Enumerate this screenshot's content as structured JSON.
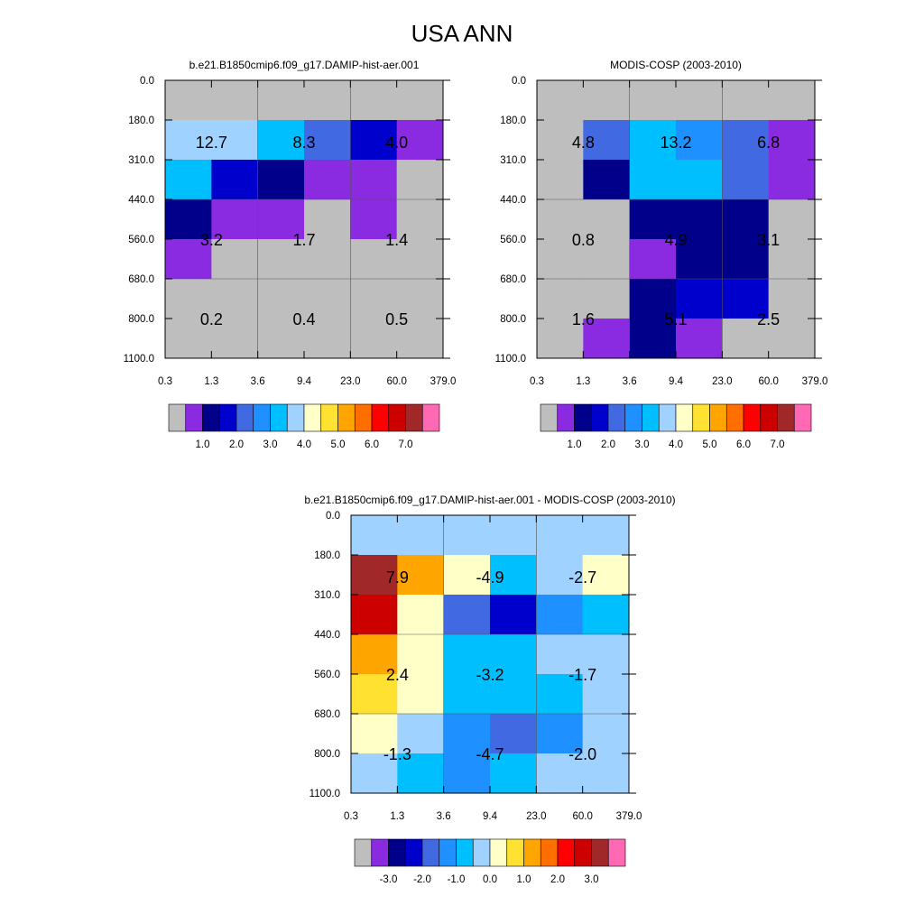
{
  "title": "USA ANN",
  "chart_data": [
    {
      "type": "heatmap",
      "title": "b.e21.B1850cmip6.f09_g17.DAMIP-hist-aer.001",
      "x_ticks": [
        "0.3",
        "1.3",
        "3.6",
        "9.4",
        "23.0",
        "60.0",
        "379.0"
      ],
      "y_ticks": [
        "0.0",
        "180.0",
        "310.0",
        "440.0",
        "560.0",
        "680.0",
        "800.0",
        "1100.0"
      ],
      "cell_colors": [
        [
          "#bebebe",
          "#bebebe",
          "#bebebe",
          "#bebebe",
          "#bebebe",
          "#bebebe"
        ],
        [
          "#a0d2ff",
          "#a0d2ff",
          "#00bfff",
          "#4169e1",
          "#0000cd",
          "#8a2be2"
        ],
        [
          "#00bfff",
          "#0000cd",
          "#00008b",
          "#8a2be2",
          "#8a2be2",
          "#bebebe"
        ],
        [
          "#00008b",
          "#8a2be2",
          "#8a2be2",
          "#bebebe",
          "#8a2be2",
          "#bebebe"
        ],
        [
          "#8a2be2",
          "#bebebe",
          "#bebebe",
          "#bebebe",
          "#bebebe",
          "#bebebe"
        ],
        [
          "#bebebe",
          "#bebebe",
          "#bebebe",
          "#bebebe",
          "#bebebe",
          "#bebebe"
        ],
        [
          "#bebebe",
          "#bebebe",
          "#bebebe",
          "#bebebe",
          "#bebebe",
          "#bebebe"
        ]
      ],
      "box_values": [
        [
          "12.7",
          "8.3",
          "4.0"
        ],
        [
          "3.2",
          "1.7",
          "1.4"
        ],
        [
          "0.2",
          "0.4",
          "0.5"
        ]
      ],
      "colorbar_labels": [
        "1.0",
        "2.0",
        "3.0",
        "4.0",
        "5.0",
        "6.0",
        "7.0"
      ]
    },
    {
      "type": "heatmap",
      "title": "MODIS-COSP (2003-2010)",
      "x_ticks": [
        "0.3",
        "1.3",
        "3.6",
        "9.4",
        "23.0",
        "60.0",
        "379.0"
      ],
      "y_ticks": [
        "0.0",
        "180.0",
        "310.0",
        "440.0",
        "560.0",
        "680.0",
        "800.0",
        "1100.0"
      ],
      "cell_colors": [
        [
          "#bebebe",
          "#bebebe",
          "#bebebe",
          "#bebebe",
          "#bebebe",
          "#bebebe"
        ],
        [
          "#bebebe",
          "#4169e1",
          "#00bfff",
          "#1e90ff",
          "#4169e1",
          "#8a2be2"
        ],
        [
          "#bebebe",
          "#00008b",
          "#00bfff",
          "#00bfff",
          "#4169e1",
          "#8a2be2"
        ],
        [
          "#bebebe",
          "#bebebe",
          "#00008b",
          "#00008b",
          "#00008b",
          "#bebebe"
        ],
        [
          "#bebebe",
          "#bebebe",
          "#8a2be2",
          "#00008b",
          "#00008b",
          "#bebebe"
        ],
        [
          "#bebebe",
          "#bebebe",
          "#00008b",
          "#0000cd",
          "#0000cd",
          "#bebebe"
        ],
        [
          "#bebebe",
          "#8a2be2",
          "#00008b",
          "#8a2be2",
          "#bebebe",
          "#bebebe"
        ]
      ],
      "box_values": [
        [
          "4.8",
          "13.2",
          "6.8"
        ],
        [
          "0.8",
          "4.9",
          "3.1"
        ],
        [
          "1.6",
          "5.1",
          "2.5"
        ]
      ],
      "colorbar_labels": [
        "1.0",
        "2.0",
        "3.0",
        "4.0",
        "5.0",
        "6.0",
        "7.0"
      ]
    },
    {
      "type": "heatmap",
      "title": "b.e21.B1850cmip6.f09_g17.DAMIP-hist-aer.001 - MODIS-COSP (2003-2010)",
      "x_ticks": [
        "0.3",
        "1.3",
        "3.6",
        "9.4",
        "23.0",
        "60.0",
        "379.0"
      ],
      "y_ticks": [
        "0.0",
        "180.0",
        "310.0",
        "440.0",
        "560.0",
        "680.0",
        "800.0",
        "1100.0"
      ],
      "cell_colors": [
        [
          "#a0d2ff",
          "#a0d2ff",
          "#a0d2ff",
          "#a0d2ff",
          "#a0d2ff",
          "#a0d2ff"
        ],
        [
          "#a02828",
          "#ffa500",
          "#ffffc8",
          "#00bfff",
          "#a0d2ff",
          "#ffffc8"
        ],
        [
          "#cd0000",
          "#ffffc8",
          "#4169e1",
          "#0000cd",
          "#1e90ff",
          "#00bfff"
        ],
        [
          "#ffa500",
          "#ffffc8",
          "#00bfff",
          "#00bfff",
          "#a0d2ff",
          "#a0d2ff"
        ],
        [
          "#ffe132",
          "#ffffc8",
          "#00bfff",
          "#00bfff",
          "#00bfff",
          "#a0d2ff"
        ],
        [
          "#ffffc8",
          "#a0d2ff",
          "#1e90ff",
          "#4169e1",
          "#1e90ff",
          "#a0d2ff"
        ],
        [
          "#a0d2ff",
          "#00bfff",
          "#1e90ff",
          "#00bfff",
          "#a0d2ff",
          "#a0d2ff"
        ]
      ],
      "box_values": [
        [
          "7.9",
          "-4.9",
          "-2.7"
        ],
        [
          "2.4",
          "-3.2",
          "-1.7"
        ],
        [
          "-1.3",
          "-4.7",
          "-2.0"
        ]
      ],
      "colorbar_labels": [
        "-3.0",
        "-2.0",
        "-1.0",
        "0.0",
        "1.0",
        "2.0",
        "3.0"
      ]
    }
  ],
  "colorbars": {
    "ratio": [
      "#bebebe",
      "#8a2be2",
      "#00008b",
      "#0000cd",
      "#4169e1",
      "#1e90ff",
      "#00bfff",
      "#a0d2ff",
      "#ffffc8",
      "#ffe132",
      "#ffa500",
      "#ff6e00",
      "#ff0000",
      "#cd0000",
      "#a02828",
      "#ff69b4"
    ],
    "diff": [
      "#bebebe",
      "#8a2be2",
      "#00008b",
      "#0000cd",
      "#4169e1",
      "#1e90ff",
      "#00bfff",
      "#a0d2ff",
      "#ffffc8",
      "#ffe132",
      "#ffa500",
      "#ff6e00",
      "#ff0000",
      "#cd0000",
      "#a02828",
      "#ff69b4"
    ]
  }
}
